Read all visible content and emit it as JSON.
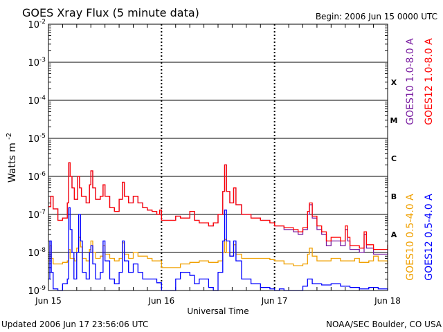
{
  "chart_data": {
    "type": "line",
    "title": "GOES Xray Flux (5 minute data)",
    "begin_label": "Begin:  2006 Jun 15 0000 UTC",
    "ylabel": "Watts m",
    "ylabel_sup": "-2",
    "xlabel": "Universal Time",
    "y_scale": "log",
    "ylim": [
      1e-09,
      0.01
    ],
    "y_ticks": [
      {
        "base": "10",
        "exp": "-2",
        "value": 0.01
      },
      {
        "base": "10",
        "exp": "-3",
        "value": 0.001
      },
      {
        "base": "10",
        "exp": "-4",
        "value": 0.0001
      },
      {
        "base": "10",
        "exp": "-5",
        "value": 1e-05
      },
      {
        "base": "10",
        "exp": "-6",
        "value": 1e-06
      },
      {
        "base": "10",
        "exp": "-7",
        "value": 1e-07
      },
      {
        "base": "10",
        "exp": "-8",
        "value": 1e-08
      },
      {
        "base": "10",
        "exp": "-9",
        "value": 1e-09
      }
    ],
    "x_unit": "hours since 2006 Jun 15 0000 UTC",
    "xlim": [
      0,
      72
    ],
    "x_ticks": [
      {
        "label": "Jun 15",
        "value": 0
      },
      {
        "label": "Jun 16",
        "value": 24
      },
      {
        "label": "Jun 17",
        "value": 48
      },
      {
        "label": "Jun 18",
        "value": 72
      }
    ],
    "flare_classes": [
      {
        "label": "X",
        "value": 0.0003
      },
      {
        "label": "M",
        "value": 3e-05
      },
      {
        "label": "C",
        "value": 3e-06
      },
      {
        "label": "B",
        "value": 3e-07
      },
      {
        "label": "A",
        "value": 3e-08
      }
    ],
    "grid": true,
    "legend_placement": "right-vertical",
    "series": [
      {
        "name": "GOES10 0.5-4.0 A",
        "color": "#f0a000",
        "points": [
          [
            0,
            6e-09
          ],
          [
            0.3,
            1.5e-08
          ],
          [
            0.6,
            7e-09
          ],
          [
            1,
            5e-09
          ],
          [
            2,
            5e-09
          ],
          [
            3,
            5.5e-09
          ],
          [
            4,
            6e-09
          ],
          [
            4.3,
            1.2e-08
          ],
          [
            4.6,
            7e-09
          ],
          [
            5.5,
            6e-09
          ],
          [
            6,
            1.3e-08
          ],
          [
            6.4,
            2.5e-08
          ],
          [
            6.8,
            1.4e-08
          ],
          [
            7.2,
            7e-09
          ],
          [
            8,
            6e-09
          ],
          [
            8.7,
            1.2e-08
          ],
          [
            9,
            2e-08
          ],
          [
            9.4,
            1e-08
          ],
          [
            10,
            7e-09
          ],
          [
            11,
            8e-09
          ],
          [
            11.6,
            1.5e-08
          ],
          [
            12,
            9e-09
          ],
          [
            13,
            7e-09
          ],
          [
            14,
            6e-09
          ],
          [
            15,
            7e-09
          ],
          [
            15.7,
            1.8e-08
          ],
          [
            16.1,
            9e-09
          ],
          [
            17,
            7e-09
          ],
          [
            18,
            1e-08
          ],
          [
            19,
            8e-09
          ],
          [
            20,
            8e-09
          ],
          [
            21,
            7e-09
          ],
          [
            22,
            6e-09
          ],
          [
            23,
            6e-09
          ],
          [
            24,
            4e-09
          ],
          [
            26,
            4e-09
          ],
          [
            28,
            5e-09
          ],
          [
            30,
            5.5e-09
          ],
          [
            32,
            6e-09
          ],
          [
            34,
            5.5e-09
          ],
          [
            36,
            6e-09
          ],
          [
            37,
            1e-08
          ],
          [
            37.4,
            2.2e-08
          ],
          [
            37.8,
            1e-08
          ],
          [
            38.5,
            8e-09
          ],
          [
            39.3,
            1.6e-08
          ],
          [
            39.8,
            9e-09
          ],
          [
            41,
            7e-09
          ],
          [
            44,
            7e-09
          ],
          [
            47,
            6.5e-09
          ],
          [
            48,
            6e-09
          ],
          [
            50,
            5e-09
          ],
          [
            52,
            4.5e-09
          ],
          [
            54,
            5e-09
          ],
          [
            55,
            9e-09
          ],
          [
            55.4,
            1.3e-08
          ],
          [
            56,
            8e-09
          ],
          [
            57,
            6e-09
          ],
          [
            59,
            6e-09
          ],
          [
            60,
            7e-09
          ],
          [
            62,
            6e-09
          ],
          [
            64,
            6e-09
          ],
          [
            65,
            7e-09
          ],
          [
            66,
            5.5e-09
          ],
          [
            68,
            6e-09
          ],
          [
            69,
            8e-09
          ],
          [
            70,
            6e-09
          ],
          [
            72,
            5e-09
          ]
        ]
      },
      {
        "name": "GOES12 0.5-4.0 A",
        "color": "#0000ff",
        "points": [
          [
            0,
            2e-09
          ],
          [
            0.3,
            2e-08
          ],
          [
            0.6,
            3e-09
          ],
          [
            1,
            1.1e-09
          ],
          [
            2,
            1e-09
          ],
          [
            3,
            1.5e-09
          ],
          [
            4,
            2e-09
          ],
          [
            4.3,
            1.5e-07
          ],
          [
            4.6,
            4e-08
          ],
          [
            5,
            1e-08
          ],
          [
            5.4,
            2e-09
          ],
          [
            6,
            1e-08
          ],
          [
            6.4,
            1e-07
          ],
          [
            6.8,
            2e-08
          ],
          [
            7.2,
            3e-09
          ],
          [
            8,
            2e-09
          ],
          [
            8.7,
            1e-08
          ],
          [
            9,
            1.5e-08
          ],
          [
            9.4,
            5e-09
          ],
          [
            10,
            2e-09
          ],
          [
            11,
            3e-09
          ],
          [
            11.6,
            2e-08
          ],
          [
            12,
            6e-09
          ],
          [
            13,
            2e-09
          ],
          [
            14,
            1.5e-09
          ],
          [
            15,
            3e-09
          ],
          [
            15.7,
            2e-08
          ],
          [
            16.1,
            6e-09
          ],
          [
            17,
            3e-09
          ],
          [
            18,
            5e-09
          ],
          [
            19,
            3e-09
          ],
          [
            20,
            2e-09
          ],
          [
            21,
            2e-09
          ],
          [
            22,
            2e-09
          ],
          [
            23,
            1.6e-09
          ],
          [
            24,
            1e-09
          ],
          [
            26,
            1e-09
          ],
          [
            27,
            2e-09
          ],
          [
            28,
            3e-09
          ],
          [
            30,
            2.5e-09
          ],
          [
            31,
            1.5e-09
          ],
          [
            32,
            2e-09
          ],
          [
            34,
            1.2e-09
          ],
          [
            35,
            1e-09
          ],
          [
            36,
            3e-09
          ],
          [
            37,
            2e-08
          ],
          [
            37.4,
            1.3e-07
          ],
          [
            37.8,
            2e-08
          ],
          [
            38.5,
            8e-09
          ],
          [
            39.3,
            2e-08
          ],
          [
            39.8,
            6e-09
          ],
          [
            41,
            2e-09
          ],
          [
            43,
            1.5e-09
          ],
          [
            45,
            1.2e-09
          ],
          [
            47,
            1.1e-09
          ],
          [
            48,
            1e-09
          ],
          [
            49,
            1.1e-09
          ],
          [
            50,
            1e-09
          ],
          [
            52,
            1e-09
          ],
          [
            54,
            1.3e-09
          ],
          [
            55,
            2e-09
          ],
          [
            56,
            1.5e-09
          ],
          [
            58,
            1.4e-09
          ],
          [
            60,
            1.5e-09
          ],
          [
            62,
            1.3e-09
          ],
          [
            64,
            1.2e-09
          ],
          [
            66,
            1.1e-09
          ],
          [
            68,
            1.2e-09
          ],
          [
            70,
            1.1e-09
          ],
          [
            72,
            1e-09
          ]
        ]
      },
      {
        "name": "GOES10 1.0-8.0 A",
        "color": "#7b1fa2",
        "points": [
          [
            0,
            1.6e-07
          ],
          [
            0.5,
            3e-07
          ],
          [
            1,
            1.4e-07
          ],
          [
            2,
            7e-08
          ],
          [
            3,
            8e-08
          ],
          [
            4,
            2e-07
          ],
          [
            4.3,
            2.3e-06
          ],
          [
            4.6,
            1e-06
          ],
          [
            5,
            5e-07
          ],
          [
            5.5,
            2.5e-07
          ],
          [
            6.2,
            1e-06
          ],
          [
            6.6,
            5e-07
          ],
          [
            7,
            3e-07
          ],
          [
            8,
            2e-07
          ],
          [
            8.7,
            6e-07
          ],
          [
            9,
            1.4e-06
          ],
          [
            9.4,
            5e-07
          ],
          [
            10,
            2.5e-07
          ],
          [
            11,
            3e-07
          ],
          [
            11.6,
            6e-07
          ],
          [
            12,
            3e-07
          ],
          [
            13,
            1.5e-07
          ],
          [
            14,
            1.2e-07
          ],
          [
            15,
            2.5e-07
          ],
          [
            15.7,
            7e-07
          ],
          [
            16.1,
            3e-07
          ],
          [
            17,
            2e-07
          ],
          [
            18,
            3e-07
          ],
          [
            19,
            2e-07
          ],
          [
            20,
            1.5e-07
          ],
          [
            21,
            1.3e-07
          ],
          [
            22,
            1.2e-07
          ],
          [
            23,
            1e-07
          ],
          [
            23.6,
            1.3e-07
          ],
          [
            24,
            7e-08
          ],
          [
            26,
            7e-08
          ],
          [
            27,
            9e-08
          ],
          [
            28,
            8e-08
          ],
          [
            30,
            1.2e-07
          ],
          [
            31,
            7e-08
          ],
          [
            32,
            6e-08
          ],
          [
            34,
            5e-08
          ],
          [
            35,
            6e-08
          ],
          [
            36,
            1e-07
          ],
          [
            37,
            4e-07
          ],
          [
            37.4,
            2e-06
          ],
          [
            37.8,
            4e-07
          ],
          [
            38.5,
            2e-07
          ],
          [
            39.3,
            5e-07
          ],
          [
            39.8,
            1.8e-07
          ],
          [
            41,
            1e-07
          ],
          [
            43,
            8e-08
          ],
          [
            45,
            7e-08
          ],
          [
            47,
            6e-08
          ],
          [
            48,
            5e-08
          ],
          [
            50,
            4e-08
          ],
          [
            52,
            3.5e-08
          ],
          [
            53,
            3e-08
          ],
          [
            54,
            4e-08
          ],
          [
            55,
            1e-07
          ],
          [
            55.4,
            1.8e-07
          ],
          [
            56,
            8e-08
          ],
          [
            57,
            4e-08
          ],
          [
            58,
            3e-08
          ],
          [
            59,
            1.5e-08
          ],
          [
            60,
            2e-08
          ],
          [
            62,
            1.5e-08
          ],
          [
            63,
            4e-08
          ],
          [
            63.5,
            2e-08
          ],
          [
            64,
            1.2e-08
          ],
          [
            66,
            1e-08
          ],
          [
            67,
            3e-08
          ],
          [
            67.5,
            1.3e-08
          ],
          [
            69,
            9e-09
          ],
          [
            72,
            1e-08
          ]
        ]
      },
      {
        "name": "GOES12 1.0-8.0 A",
        "color": "#ff0000",
        "points": [
          [
            0,
            1.6e-07
          ],
          [
            0.5,
            3e-07
          ],
          [
            1,
            1.4e-07
          ],
          [
            2,
            7e-08
          ],
          [
            3,
            8e-08
          ],
          [
            4,
            2e-07
          ],
          [
            4.3,
            2.3e-06
          ],
          [
            4.6,
            1e-06
          ],
          [
            5,
            5e-07
          ],
          [
            5.5,
            2.5e-07
          ],
          [
            6.2,
            1e-06
          ],
          [
            6.6,
            5e-07
          ],
          [
            7,
            3e-07
          ],
          [
            8,
            2e-07
          ],
          [
            8.7,
            6e-07
          ],
          [
            9,
            1.4e-06
          ],
          [
            9.4,
            5e-07
          ],
          [
            10,
            2.5e-07
          ],
          [
            11,
            3e-07
          ],
          [
            11.6,
            6e-07
          ],
          [
            12,
            3e-07
          ],
          [
            13,
            1.5e-07
          ],
          [
            14,
            1.2e-07
          ],
          [
            15,
            2.5e-07
          ],
          [
            15.7,
            7e-07
          ],
          [
            16.1,
            3e-07
          ],
          [
            17,
            2e-07
          ],
          [
            18,
            3e-07
          ],
          [
            19,
            2e-07
          ],
          [
            20,
            1.5e-07
          ],
          [
            21,
            1.3e-07
          ],
          [
            22,
            1.2e-07
          ],
          [
            23,
            1e-07
          ],
          [
            23.6,
            1.3e-07
          ],
          [
            24,
            7e-08
          ],
          [
            26,
            7e-08
          ],
          [
            27,
            9e-08
          ],
          [
            28,
            8e-08
          ],
          [
            30,
            1.2e-07
          ],
          [
            31,
            7e-08
          ],
          [
            32,
            6e-08
          ],
          [
            34,
            5e-08
          ],
          [
            35,
            6e-08
          ],
          [
            36,
            1e-07
          ],
          [
            37,
            4e-07
          ],
          [
            37.4,
            2e-06
          ],
          [
            37.8,
            4e-07
          ],
          [
            38.5,
            2e-07
          ],
          [
            39.3,
            5e-07
          ],
          [
            39.8,
            1.8e-07
          ],
          [
            41,
            1e-07
          ],
          [
            43,
            8e-08
          ],
          [
            45,
            7e-08
          ],
          [
            47,
            6e-08
          ],
          [
            48,
            5e-08
          ],
          [
            50,
            4.5e-08
          ],
          [
            52,
            4e-08
          ],
          [
            53,
            3.5e-08
          ],
          [
            54,
            4.5e-08
          ],
          [
            55,
            1.2e-07
          ],
          [
            55.4,
            2e-07
          ],
          [
            56,
            9e-08
          ],
          [
            57,
            5e-08
          ],
          [
            58,
            3.5e-08
          ],
          [
            59,
            2e-08
          ],
          [
            60,
            2.5e-08
          ],
          [
            62,
            2e-08
          ],
          [
            63,
            5e-08
          ],
          [
            63.5,
            2.5e-08
          ],
          [
            64,
            1.5e-08
          ],
          [
            66,
            1.3e-08
          ],
          [
            67,
            3.5e-08
          ],
          [
            67.5,
            1.6e-08
          ],
          [
            69,
            1.2e-08
          ],
          [
            71,
            1.2e-08
          ],
          [
            72,
            1.6e-08
          ]
        ]
      }
    ]
  },
  "footer": {
    "updated": "Updated 2006 Jun 17 23:56:06 UTC",
    "credit": "NOAA/SEC Boulder, CO USA"
  }
}
